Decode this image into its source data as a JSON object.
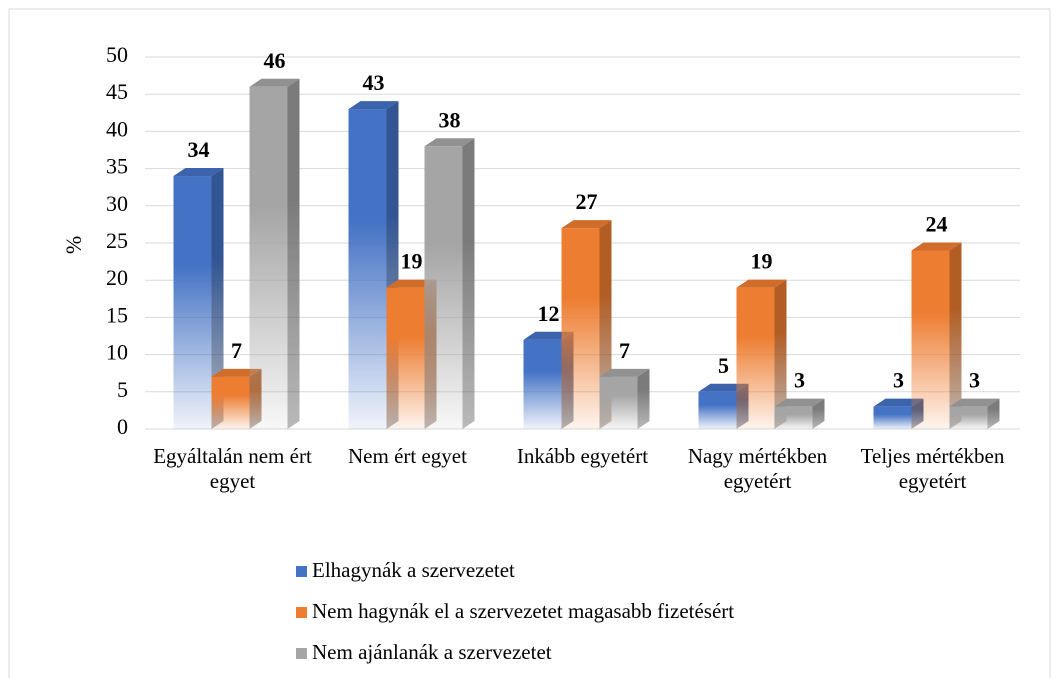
{
  "chart_data": {
    "type": "bar3d",
    "categories": [
      "Egyáltalán nem ért egyet",
      "Nem ért egyet",
      "Inkább egyetért",
      "Nagy mértékben egyetért",
      "Teljes mértékben egyetért"
    ],
    "series": [
      {
        "name": "Elhagynák a szervezetet",
        "color": "#4472c4",
        "values": [
          34,
          43,
          12,
          5,
          3
        ]
      },
      {
        "name": "Nem hagynák el a szervezetet magasabb fizetésért",
        "color": "#ed7d31",
        "values": [
          7,
          19,
          27,
          19,
          24
        ]
      },
      {
        "name": "Nem ajánlanák a szervezetet",
        "color": "#a5a5a5",
        "values": [
          46,
          38,
          7,
          3,
          3
        ]
      }
    ],
    "ylabel": "%",
    "ylim": [
      0,
      50
    ],
    "yticks": [
      0,
      5,
      10,
      15,
      20,
      25,
      30,
      35,
      40,
      45,
      50
    ],
    "grid": true
  }
}
